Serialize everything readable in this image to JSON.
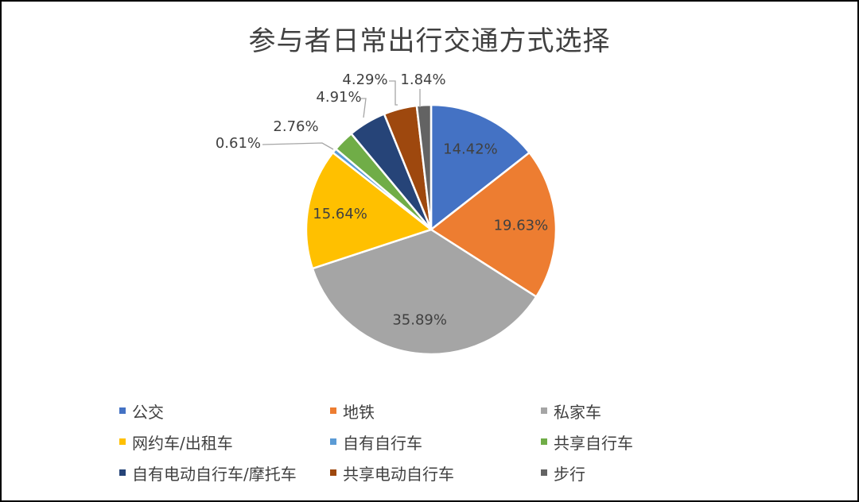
{
  "chart_data": {
    "type": "pie",
    "title": "参与者日常出行交通方式选择",
    "legend_position": "bottom",
    "slices": [
      {
        "name": "公交",
        "value": 14.42,
        "label": "14.42%",
        "color": "#4472C4"
      },
      {
        "name": "地铁",
        "value": 19.63,
        "label": "19.63%",
        "color": "#ED7D31"
      },
      {
        "name": "私家车",
        "value": 35.89,
        "label": "35.89%",
        "color": "#A5A5A5"
      },
      {
        "name": "网约车/出租车",
        "value": 15.64,
        "label": "15.64%",
        "color": "#FFC000"
      },
      {
        "name": "自有自行车",
        "value": 0.61,
        "label": "0.61%",
        "color": "#5B9BD5"
      },
      {
        "name": "共享自行车",
        "value": 2.76,
        "label": "2.76%",
        "color": "#70AD47"
      },
      {
        "name": "自有电动自行车/摩托车",
        "value": 4.91,
        "label": "4.91%",
        "color": "#264478"
      },
      {
        "name": "共享电动自行车",
        "value": 4.29,
        "label": "4.29%",
        "color": "#9E480E"
      },
      {
        "name": "步行",
        "value": 1.84,
        "label": "1.84%",
        "color": "#636363"
      }
    ]
  }
}
